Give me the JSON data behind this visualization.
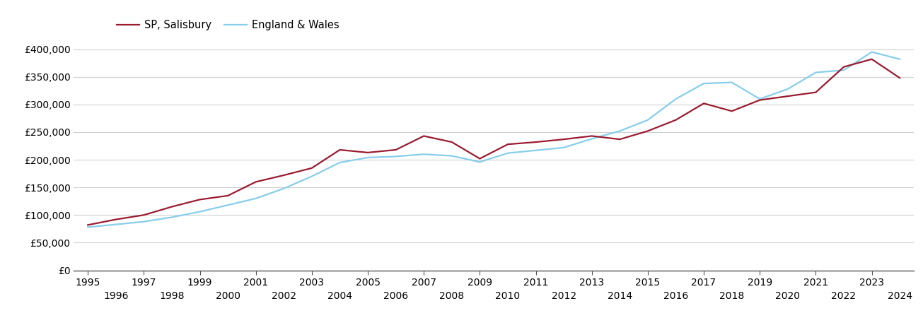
{
  "legend_labels": [
    "SP, Salisbury",
    "England & Wales"
  ],
  "colors": {
    "salisbury": "#9B1B30",
    "england_wales": "#87CEEB"
  },
  "years": [
    1995,
    1996,
    1997,
    1998,
    1999,
    2000,
    2001,
    2002,
    2003,
    2004,
    2005,
    2006,
    2007,
    2008,
    2009,
    2010,
    2011,
    2012,
    2013,
    2014,
    2015,
    2016,
    2017,
    2018,
    2019,
    2020,
    2021,
    2022,
    2023,
    2024
  ],
  "salisbury": [
    82000,
    92000,
    100000,
    115000,
    128000,
    135000,
    160000,
    172000,
    185000,
    218000,
    213000,
    218000,
    243000,
    232000,
    202000,
    228000,
    232000,
    237000,
    243000,
    237000,
    252000,
    272000,
    302000,
    288000,
    308000,
    315000,
    322000,
    368000,
    382000,
    348000
  ],
  "england_wales": [
    78000,
    83000,
    88000,
    96000,
    106000,
    118000,
    130000,
    148000,
    170000,
    195000,
    204000,
    206000,
    210000,
    207000,
    196000,
    212000,
    217000,
    222000,
    238000,
    252000,
    272000,
    310000,
    338000,
    340000,
    310000,
    328000,
    358000,
    362000,
    395000,
    382000
  ],
  "ylim": [
    0,
    420000
  ],
  "yticks": [
    0,
    50000,
    100000,
    150000,
    200000,
    250000,
    300000,
    350000,
    400000
  ],
  "xlim": [
    1994.5,
    2024.5
  ],
  "bg_color": "#ffffff",
  "grid_color": "#d0d0d0",
  "linewidth": 1.6
}
